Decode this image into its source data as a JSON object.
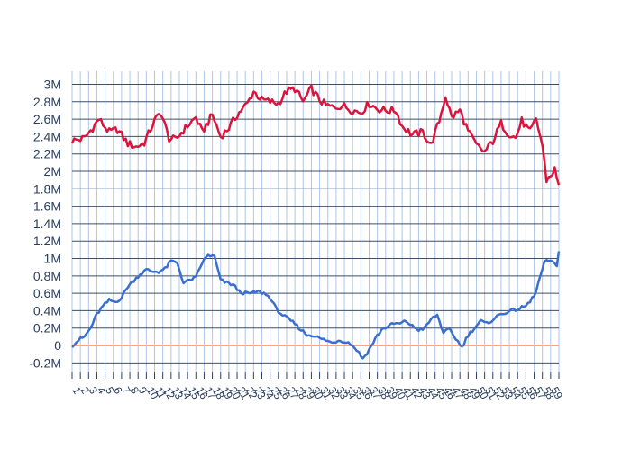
{
  "chart_data": {
    "type": "line",
    "title": "",
    "xlabel": "",
    "ylabel": "",
    "ylim": [
      -0.3,
      3.15
    ],
    "y_unit": "M",
    "grid": true,
    "legend": "none",
    "yticks": [
      "-0.2M",
      "0",
      "0.2M",
      "0.4M",
      "0.6M",
      "0.8M",
      "1M",
      "1.2M",
      "1.4M",
      "1.6M",
      "1.8M",
      "2M",
      "2.2M",
      "2.4M",
      "2.6M",
      "2.8M",
      "3M"
    ],
    "ytick_values": [
      -0.2,
      0,
      0.2,
      0.4,
      0.6,
      0.8,
      1.0,
      1.2,
      1.4,
      1.6,
      1.8,
      2.0,
      2.2,
      2.4,
      2.6,
      2.8,
      3.0
    ],
    "x_points": 236,
    "x_tick_every": 4,
    "zero_line_color": "#f4a582",
    "series": [
      {
        "color": "#dc143c",
        "keypoints": [
          [
            0,
            2.35
          ],
          [
            6,
            2.38
          ],
          [
            10,
            2.5
          ],
          [
            13,
            2.6
          ],
          [
            18,
            2.45
          ],
          [
            22,
            2.48
          ],
          [
            27,
            2.32
          ],
          [
            31,
            2.28
          ],
          [
            35,
            2.33
          ],
          [
            40,
            2.58
          ],
          [
            43,
            2.68
          ],
          [
            47,
            2.38
          ],
          [
            50,
            2.36
          ],
          [
            55,
            2.5
          ],
          [
            60,
            2.62
          ],
          [
            63,
            2.45
          ],
          [
            68,
            2.65
          ],
          [
            72,
            2.4
          ],
          [
            76,
            2.5
          ],
          [
            80,
            2.65
          ],
          [
            85,
            2.78
          ],
          [
            88,
            2.92
          ],
          [
            92,
            2.82
          ],
          [
            96,
            2.8
          ],
          [
            100,
            2.78
          ],
          [
            104,
            2.92
          ],
          [
            108,
            2.95
          ],
          [
            112,
            2.8
          ],
          [
            116,
            2.95
          ],
          [
            120,
            2.82
          ],
          [
            123,
            2.76
          ],
          [
            127,
            2.73
          ],
          [
            131,
            2.76
          ],
          [
            136,
            2.7
          ],
          [
            140,
            2.68
          ],
          [
            144,
            2.78
          ],
          [
            148,
            2.72
          ],
          [
            152,
            2.7
          ],
          [
            157,
            2.7
          ],
          [
            160,
            2.52
          ],
          [
            165,
            2.42
          ],
          [
            170,
            2.45
          ],
          [
            174,
            2.3
          ],
          [
            178,
            2.58
          ],
          [
            181,
            2.87
          ],
          [
            184,
            2.62
          ],
          [
            188,
            2.7
          ],
          [
            192,
            2.46
          ],
          [
            196,
            2.3
          ],
          [
            200,
            2.22
          ],
          [
            204,
            2.35
          ],
          [
            208,
            2.55
          ],
          [
            211,
            2.45
          ],
          [
            215,
            2.38
          ],
          [
            218,
            2.58
          ],
          [
            222,
            2.45
          ],
          [
            225,
            2.6
          ],
          [
            228,
            2.3
          ],
          [
            230,
            1.9
          ],
          [
            232,
            1.95
          ],
          [
            234,
            2.02
          ],
          [
            236,
            1.82
          ]
        ]
      },
      {
        "color": "#3a6fcf",
        "keypoints": [
          [
            0,
            0.0
          ],
          [
            3,
            0.06
          ],
          [
            6,
            0.1
          ],
          [
            9,
            0.2
          ],
          [
            12,
            0.36
          ],
          [
            15,
            0.45
          ],
          [
            18,
            0.52
          ],
          [
            21,
            0.5
          ],
          [
            24,
            0.55
          ],
          [
            27,
            0.68
          ],
          [
            30,
            0.75
          ],
          [
            33,
            0.82
          ],
          [
            36,
            0.87
          ],
          [
            39,
            0.85
          ],
          [
            42,
            0.85
          ],
          [
            45,
            0.88
          ],
          [
            48,
            0.97
          ],
          [
            51,
            0.95
          ],
          [
            54,
            0.72
          ],
          [
            57,
            0.75
          ],
          [
            60,
            0.78
          ],
          [
            63,
            0.95
          ],
          [
            66,
            1.04
          ],
          [
            69,
            1.02
          ],
          [
            72,
            0.75
          ],
          [
            75,
            0.72
          ],
          [
            78,
            0.7
          ],
          [
            81,
            0.62
          ],
          [
            84,
            0.6
          ],
          [
            87,
            0.6
          ],
          [
            90,
            0.62
          ],
          [
            93,
            0.6
          ],
          [
            96,
            0.55
          ],
          [
            99,
            0.42
          ],
          [
            102,
            0.35
          ],
          [
            105,
            0.3
          ],
          [
            108,
            0.25
          ],
          [
            111,
            0.18
          ],
          [
            114,
            0.12
          ],
          [
            117,
            0.12
          ],
          [
            120,
            0.08
          ],
          [
            123,
            0.06
          ],
          [
            126,
            0.03
          ],
          [
            129,
            0.06
          ],
          [
            132,
            0.05
          ],
          [
            135,
            0.02
          ],
          [
            138,
            -0.05
          ],
          [
            141,
            -0.15
          ],
          [
            144,
            -0.05
          ],
          [
            147,
            0.08
          ],
          [
            150,
            0.18
          ],
          [
            153,
            0.22
          ],
          [
            156,
            0.25
          ],
          [
            159,
            0.25
          ],
          [
            162,
            0.28
          ],
          [
            165,
            0.22
          ],
          [
            168,
            0.18
          ],
          [
            171,
            0.2
          ],
          [
            174,
            0.3
          ],
          [
            177,
            0.35
          ],
          [
            180,
            0.15
          ],
          [
            183,
            0.18
          ],
          [
            186,
            0.08
          ],
          [
            189,
            -0.02
          ],
          [
            192,
            0.12
          ],
          [
            195,
            0.2
          ],
          [
            198,
            0.28
          ],
          [
            201,
            0.25
          ],
          [
            204,
            0.3
          ],
          [
            207,
            0.35
          ],
          [
            210,
            0.38
          ],
          [
            213,
            0.4
          ],
          [
            216,
            0.42
          ],
          [
            219,
            0.44
          ],
          [
            222,
            0.5
          ],
          [
            225,
            0.62
          ],
          [
            227,
            0.8
          ],
          [
            229,
            0.95
          ],
          [
            231,
            0.98
          ],
          [
            233,
            0.95
          ],
          [
            235,
            0.92
          ],
          [
            236,
            1.1
          ]
        ]
      }
    ],
    "x_tick_labels": [
      "1",
      "2",
      "3",
      "4",
      "5",
      "6",
      "7",
      "8",
      "9",
      "10",
      "11",
      "12",
      "13",
      "14",
      "15",
      "16",
      "17",
      "18",
      "19",
      "20",
      "21",
      "22",
      "23",
      "24",
      "25",
      "26",
      "27",
      "28",
      "29",
      "30",
      "31",
      "32",
      "33",
      "34",
      "35",
      "36",
      "37",
      "38",
      "39",
      "40",
      "41",
      "42",
      "43",
      "44",
      "45",
      "46",
      "47",
      "48",
      "49",
      "50",
      "51",
      "52",
      "53",
      "54",
      "55",
      "56",
      "57",
      "58",
      "59"
    ]
  }
}
